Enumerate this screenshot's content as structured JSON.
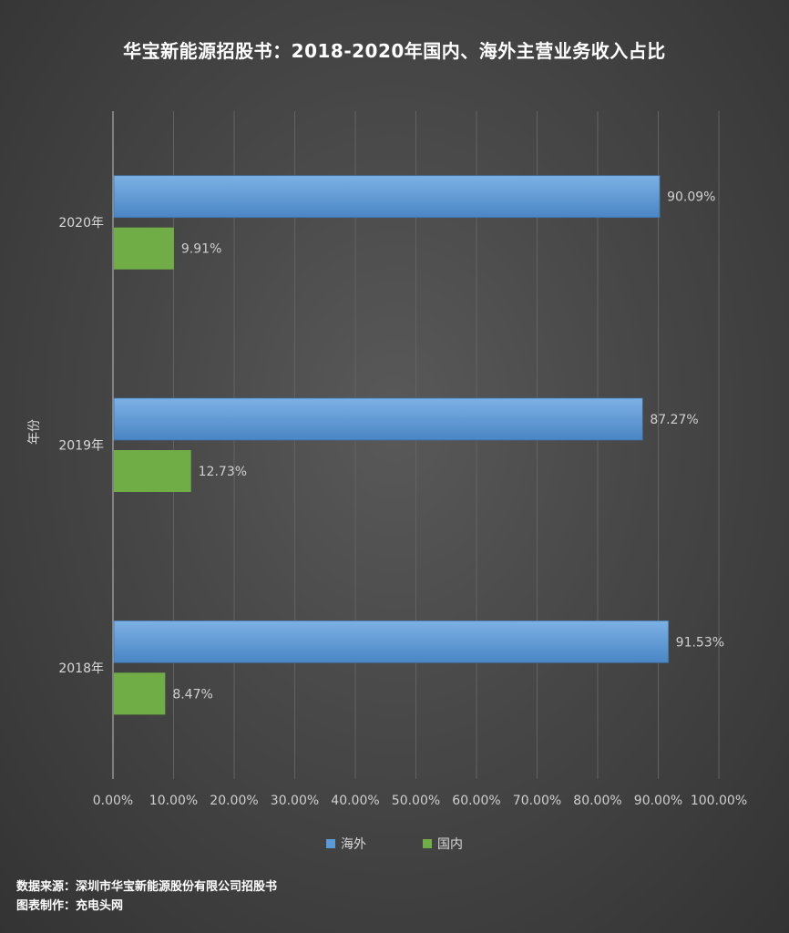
{
  "title": "华宝新能源招股书：2018-2020年国内、海外主营业务收入占比",
  "source_line": "数据来源：深圳市华宝新能源股份有限公司招股书",
  "maker_line": "图表制作：充电头网",
  "colors": {
    "overseas": "#5b9bd5",
    "domestic": "#70ad47"
  },
  "chart_data": {
    "type": "bar",
    "orientation": "horizontal",
    "title": "华宝新能源招股书：2018-2020年国内、海外主营业务收入占比",
    "ylabel": "年份",
    "xlabel": "",
    "categories": [
      "2020年",
      "2019年",
      "2018年"
    ],
    "series": [
      {
        "name": "海外",
        "values": [
          90.09,
          87.27,
          91.53
        ],
        "labels": [
          "90.09%",
          "87.27%",
          "91.53%"
        ]
      },
      {
        "name": "国内",
        "values": [
          9.91,
          12.73,
          8.47
        ],
        "labels": [
          "9.91%",
          "12.73%",
          "8.47%"
        ]
      }
    ],
    "xlim": [
      0,
      100
    ],
    "xticks": [
      "0.00%",
      "10.00%",
      "20.00%",
      "30.00%",
      "40.00%",
      "50.00%",
      "60.00%",
      "70.00%",
      "80.00%",
      "90.00%",
      "100.00%"
    ],
    "grid": true,
    "legend": "bottom"
  }
}
